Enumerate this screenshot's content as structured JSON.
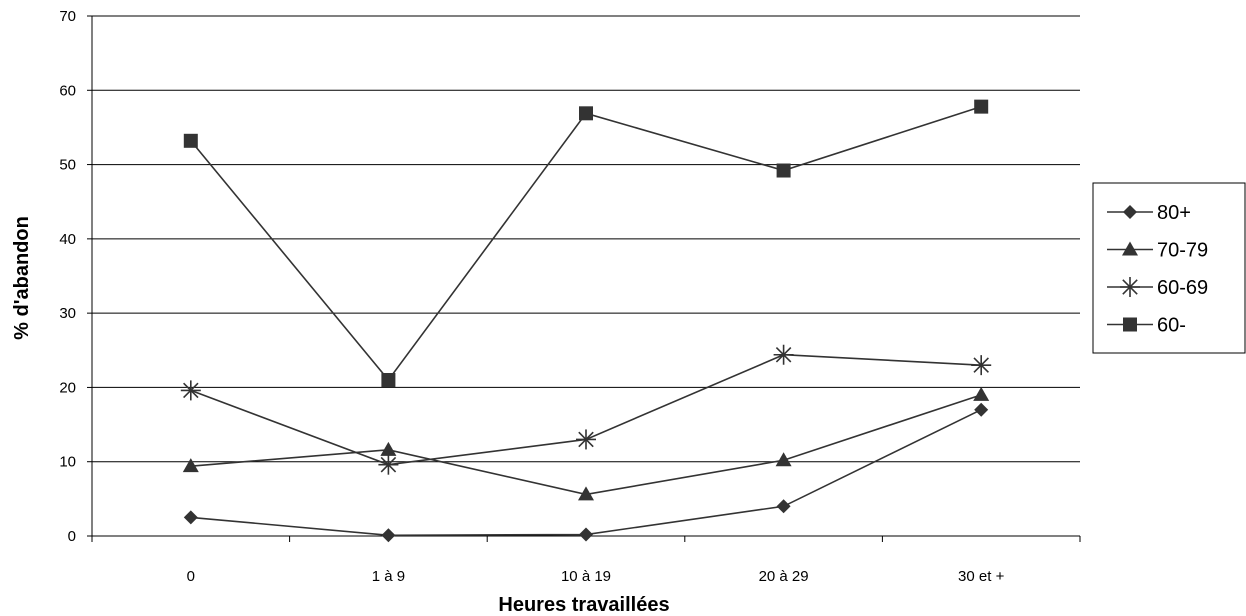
{
  "chart_data": {
    "type": "line",
    "title": "",
    "xlabel": "Heures travaillées",
    "ylabel": "% d'abandon",
    "categories": [
      "0",
      "1 à 9",
      "10 à 19",
      "20 à 29",
      "30 et +"
    ],
    "ylim": [
      0,
      70
    ],
    "yticks": [
      0,
      10,
      20,
      30,
      40,
      50,
      60,
      70
    ],
    "grid": "horizontal",
    "legend_position": "right",
    "series": [
      {
        "name": "80+",
        "marker": "diamond",
        "values": [
          2.5,
          0.1,
          0.2,
          4.0,
          17.0
        ]
      },
      {
        "name": "70-79",
        "marker": "triangle",
        "values": [
          9.4,
          11.6,
          5.6,
          10.2,
          19.0
        ]
      },
      {
        "name": "60-69",
        "marker": "asterisk",
        "values": [
          19.6,
          9.6,
          13.0,
          24.4,
          23.0
        ]
      },
      {
        "name": "60-",
        "marker": "square",
        "values": [
          53.2,
          21.0,
          56.9,
          49.2,
          57.8
        ]
      }
    ]
  }
}
